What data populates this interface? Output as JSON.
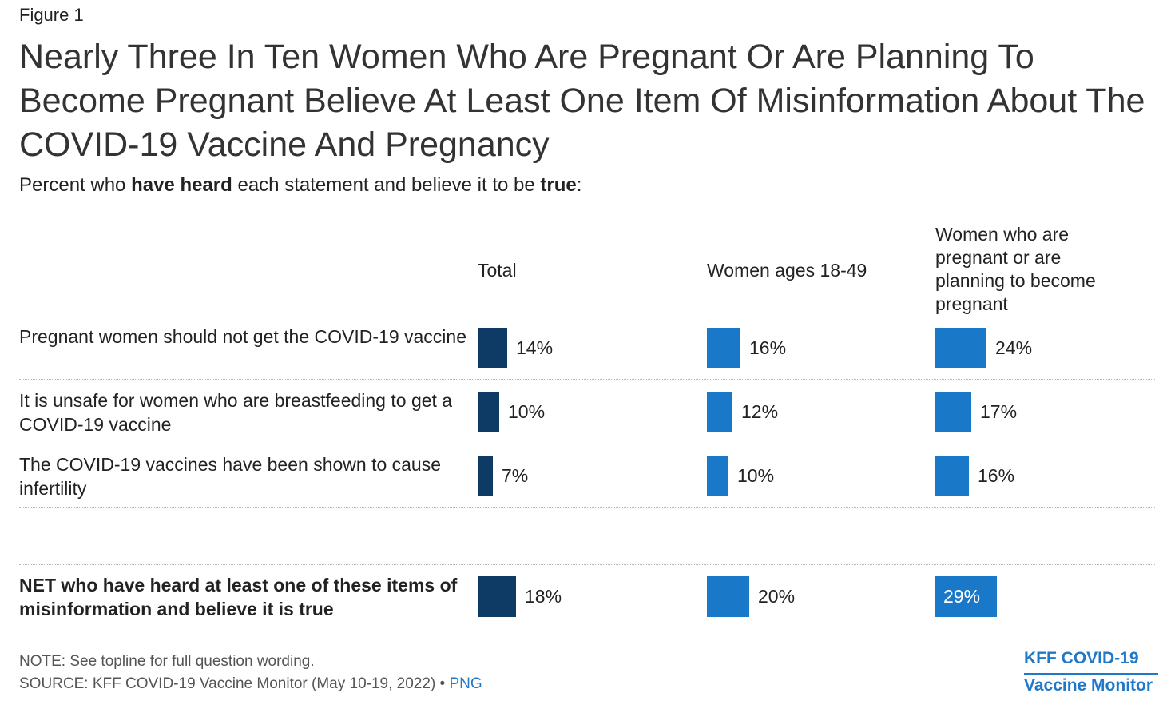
{
  "figure_label": "Figure 1",
  "title": "Nearly Three In Ten Women Who Are Pregnant Or Are Planning To Become Pregnant Believe At Least One Item Of Misinformation About The COVID-19 Vaccine And Pregnancy",
  "subtitle": {
    "part1": "Percent who ",
    "bold1": "have heard",
    "part2": " each statement and believe it to be ",
    "bold2": "true",
    "part3": ":"
  },
  "colors": {
    "total": "#0e3a66",
    "women": "#1a78c9",
    "pregnant": "#1a78c9"
  },
  "chart_data": {
    "type": "bar",
    "orientation": "horizontal",
    "xlim": [
      0,
      100
    ],
    "unit": "%",
    "categories": [
      "Pregnant women should not get the COVID-19 vaccine",
      "It is unsafe for women who are breastfeeding to get a COVID-19 vaccine",
      "The COVID-19 vaccines have been shown to cause infertility",
      "NET who have heard at least one of these items of misinformation and believe it is true"
    ],
    "series": [
      {
        "name": "Total",
        "values": [
          14,
          10,
          7,
          18
        ],
        "labels": [
          "14%",
          "10%",
          "7%",
          "18%"
        ]
      },
      {
        "name": "Women ages 18-49",
        "values": [
          16,
          12,
          10,
          20
        ],
        "labels": [
          "16%",
          "12%",
          "10%",
          "20%"
        ]
      },
      {
        "name": "Women who are pregnant or are planning to become pregnant",
        "values": [
          24,
          17,
          16,
          29
        ],
        "labels": [
          "24%",
          "17%",
          "16%",
          "29%"
        ]
      }
    ]
  },
  "note": "NOTE: See topline for full question wording.",
  "source": "SOURCE: KFF COVID-19 Vaccine Monitor (May 10-19, 2022) • ",
  "source_link": "PNG",
  "brand": {
    "line1": "KFF COVID-19",
    "line2": "Vaccine Monitor"
  }
}
